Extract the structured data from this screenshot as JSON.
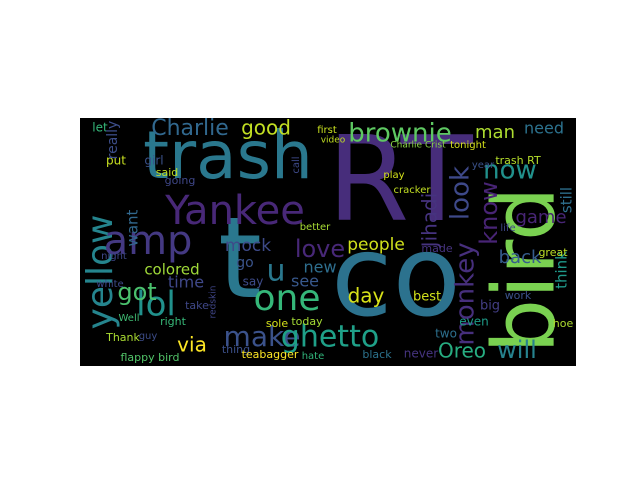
{
  "chart_data": {
    "type": "wordcloud",
    "background": "#000000",
    "words": [
      {
        "text": "RT",
        "color": "#472d7b"
      },
      {
        "text": "co",
        "color": "#2c728e"
      },
      {
        "text": "t",
        "color": "#2a788e"
      },
      {
        "text": "trash",
        "color": "#2a788e"
      },
      {
        "text": "bird",
        "color": "#7ad151"
      },
      {
        "text": "Yankee",
        "color": "#482878"
      },
      {
        "text": "yellow",
        "color": "#25858e"
      },
      {
        "text": "amp",
        "color": "#443983"
      },
      {
        "text": "lol",
        "color": "#21918c"
      },
      {
        "text": "u",
        "color": "#2a788e"
      },
      {
        "text": "one",
        "color": "#35b779"
      },
      {
        "text": "make",
        "color": "#3b528b"
      },
      {
        "text": "ghetto",
        "color": "#1fa088"
      },
      {
        "text": "brownie",
        "color": "#5ec962"
      },
      {
        "text": "Charlie",
        "color": "#31688e"
      },
      {
        "text": "good",
        "color": "#c2df23"
      },
      {
        "text": "now",
        "color": "#21918c"
      },
      {
        "text": "man",
        "color": "#addc30"
      },
      {
        "text": "need",
        "color": "#2c728e"
      },
      {
        "text": "love",
        "color": "#482878"
      },
      {
        "text": "see",
        "color": "#38588c"
      },
      {
        "text": "colored",
        "color": "#a0da39"
      },
      {
        "text": "got",
        "color": "#4ac16d"
      },
      {
        "text": "time",
        "color": "#3f4889"
      },
      {
        "text": "mock",
        "color": "#3e4a89"
      },
      {
        "text": "new",
        "color": "#2e6e8e"
      },
      {
        "text": "day",
        "color": "#d8e219"
      },
      {
        "text": "people",
        "color": "#d0e11c"
      },
      {
        "text": "look",
        "color": "#3e4989"
      },
      {
        "text": "Jihadi",
        "color": "#46337f"
      },
      {
        "text": "know",
        "color": "#482475"
      },
      {
        "text": "monkey",
        "color": "#472f7d"
      },
      {
        "text": "will",
        "color": "#26828e"
      },
      {
        "text": "Oreo",
        "color": "#27ad81"
      },
      {
        "text": "back",
        "color": "#365d8d"
      },
      {
        "text": "game",
        "color": "#482576"
      },
      {
        "text": "think",
        "color": "#1f998a"
      },
      {
        "text": "still",
        "color": "#2e6f8e"
      },
      {
        "text": "want",
        "color": "#31688e"
      },
      {
        "text": "via",
        "color": "#fde725"
      },
      {
        "text": "flappy bird",
        "color": "#52c569"
      },
      {
        "text": "Thank",
        "color": "#aadc32"
      },
      {
        "text": "go",
        "color": "#3a548c"
      },
      {
        "text": "say",
        "color": "#3e4c8a"
      },
      {
        "text": "best",
        "color": "#d2e21b"
      },
      {
        "text": "black",
        "color": "#2c738e"
      },
      {
        "text": "never",
        "color": "#463480"
      },
      {
        "text": "two",
        "color": "#2d708e"
      },
      {
        "text": "even",
        "color": "#1e9c89"
      },
      {
        "text": "big",
        "color": "#433e85"
      },
      {
        "text": "hoe",
        "color": "#addc30"
      },
      {
        "text": "work",
        "color": "#3b528b"
      },
      {
        "text": "girl",
        "color": "#3b528b"
      },
      {
        "text": "put",
        "color": "#c8e020"
      },
      {
        "text": "said",
        "color": "#c0df25"
      },
      {
        "text": "going",
        "color": "#3f4788"
      },
      {
        "text": "let",
        "color": "#35b779"
      },
      {
        "text": "really",
        "color": "#3d4e8a"
      },
      {
        "text": "today",
        "color": "#a5db36"
      },
      {
        "text": "sole",
        "color": "#d5e21a"
      },
      {
        "text": "thing",
        "color": "#3c508b"
      },
      {
        "text": "teabagger",
        "color": "#fde725"
      },
      {
        "text": "hate",
        "color": "#31b57b"
      },
      {
        "text": "right",
        "color": "#37b878"
      },
      {
        "text": "take",
        "color": "#3f4889"
      },
      {
        "text": "redskin",
        "color": "#404688"
      },
      {
        "text": "Well",
        "color": "#3fbc73"
      },
      {
        "text": "white",
        "color": "#3e4a89"
      },
      {
        "text": "night",
        "color": "#3f4788"
      },
      {
        "text": "guy",
        "color": "#3d4d8a"
      },
      {
        "text": "year",
        "color": "#3b528b"
      },
      {
        "text": "great",
        "color": "#bddf26"
      },
      {
        "text": "play",
        "color": "#d5e21a"
      },
      {
        "text": "made",
        "color": "#46337f"
      },
      {
        "text": "life",
        "color": "#3f4788"
      },
      {
        "text": "cracker",
        "color": "#c2df23"
      },
      {
        "text": "better",
        "color": "#a8db34"
      },
      {
        "text": "call",
        "color": "#3e4a89"
      },
      {
        "text": "first",
        "color": "#c8e020"
      },
      {
        "text": "video",
        "color": "#c2df23"
      },
      {
        "text": "tonight",
        "color": "#d5e21a"
      },
      {
        "text": "trash RT",
        "color": "#b5de2b"
      },
      {
        "text": "Charlie Crist",
        "color": "#8bd646"
      }
    ]
  }
}
